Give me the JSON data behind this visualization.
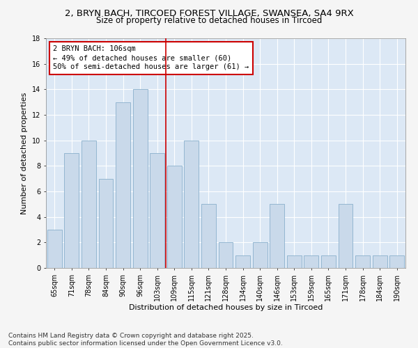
{
  "title_line1": "2, BRYN BACH, TIRCOED FOREST VILLAGE, SWANSEA, SA4 9RX",
  "title_line2": "Size of property relative to detached houses in Tircoed",
  "xlabel": "Distribution of detached houses by size in Tircoed",
  "ylabel": "Number of detached properties",
  "categories": [
    "65sqm",
    "71sqm",
    "78sqm",
    "84sqm",
    "90sqm",
    "96sqm",
    "103sqm",
    "109sqm",
    "115sqm",
    "121sqm",
    "128sqm",
    "134sqm",
    "140sqm",
    "146sqm",
    "153sqm",
    "159sqm",
    "165sqm",
    "171sqm",
    "178sqm",
    "184sqm",
    "190sqm"
  ],
  "values": [
    3,
    9,
    10,
    7,
    13,
    14,
    9,
    8,
    10,
    5,
    2,
    1,
    2,
    5,
    1,
    1,
    1,
    5,
    1,
    1,
    1
  ],
  "bar_color": "#c9d9ea",
  "bar_edge_color": "#8ab0cc",
  "annotation_text": "2 BRYN BACH: 106sqm\n← 49% of detached houses are smaller (60)\n50% of semi-detached houses are larger (61) →",
  "annotation_box_color": "#cc0000",
  "vline_x": 6.5,
  "ylim": [
    0,
    18
  ],
  "yticks": [
    0,
    2,
    4,
    6,
    8,
    10,
    12,
    14,
    16,
    18
  ],
  "background_color": "#dce8f5",
  "fig_background": "#f5f5f5",
  "footer_line1": "Contains HM Land Registry data © Crown copyright and database right 2025.",
  "footer_line2": "Contains public sector information licensed under the Open Government Licence v3.0.",
  "title_fontsize": 9.5,
  "subtitle_fontsize": 8.5,
  "xlabel_fontsize": 8,
  "ylabel_fontsize": 8,
  "tick_fontsize": 7,
  "annotation_fontsize": 7.5,
  "footer_fontsize": 6.5
}
